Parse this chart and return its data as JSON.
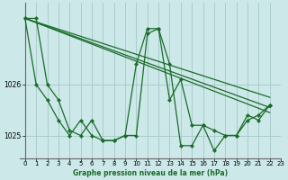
{
  "title": "Graphe pression niveau de la mer (hPa)",
  "bg_color": "#cce8e8",
  "grid_color": "#aacccc",
  "line_color": "#1a6b2a",
  "xlim": [
    -0.5,
    23
  ],
  "ylim": [
    1024.55,
    1027.6
  ],
  "yticks": [
    1025,
    1026
  ],
  "ytick_labels": [
    "1025",
    "1026"
  ],
  "xticks": [
    0,
    1,
    2,
    3,
    4,
    5,
    6,
    7,
    8,
    9,
    10,
    11,
    12,
    13,
    14,
    15,
    16,
    17,
    18,
    19,
    20,
    21,
    22,
    23
  ],
  "series": [
    {
      "x": [
        0,
        1,
        2,
        3,
        4,
        5,
        6,
        7,
        8,
        9,
        10,
        11,
        12,
        13,
        14,
        15,
        16,
        17,
        18,
        19,
        20,
        21,
        22
      ],
      "y": [
        1027.3,
        1027.3,
        1026.0,
        1025.7,
        1025.1,
        1025.0,
        1025.3,
        1024.9,
        1024.9,
        1025.0,
        1025.0,
        1027.0,
        1027.1,
        1026.4,
        1024.8,
        1024.8,
        1025.2,
        1025.1,
        1025.0,
        1025.0,
        1025.4,
        1025.3,
        1025.6
      ],
      "marker": true
    },
    {
      "x": [
        0,
        1,
        2,
        3,
        4,
        5,
        6,
        7,
        8,
        9,
        10,
        11,
        12,
        13,
        14,
        15,
        16,
        17,
        18,
        19,
        20,
        21,
        22
      ],
      "y": [
        1027.3,
        1026.0,
        1025.7,
        1025.3,
        1025.0,
        1025.3,
        1025.0,
        1024.9,
        1024.9,
        1025.0,
        1026.4,
        1027.1,
        1027.1,
        1025.7,
        1026.1,
        1025.2,
        1025.2,
        1024.7,
        1025.0,
        1025.0,
        1025.3,
        1025.4,
        1025.6
      ],
      "marker": true
    },
    {
      "x": [
        0,
        22
      ],
      "y": [
        1027.3,
        1025.55
      ],
      "marker": false
    },
    {
      "x": [
        0,
        22
      ],
      "y": [
        1027.3,
        1025.75
      ],
      "marker": false
    },
    {
      "x": [
        0,
        22
      ],
      "y": [
        1027.3,
        1025.45
      ],
      "marker": false
    }
  ],
  "left_spine_x": 0
}
